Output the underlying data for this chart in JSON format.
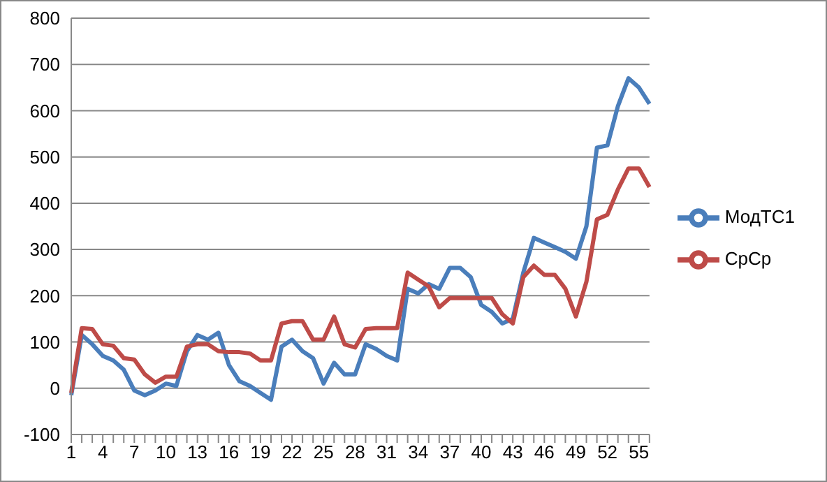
{
  "chart_data": {
    "type": "line",
    "categories": [
      "1",
      null,
      null,
      "4",
      null,
      null,
      "7",
      null,
      null,
      "10",
      null,
      null,
      "13",
      null,
      null,
      "16",
      null,
      null,
      "19",
      null,
      null,
      "22",
      null,
      null,
      "25",
      null,
      null,
      "28",
      null,
      null,
      "31",
      null,
      null,
      "34",
      null,
      null,
      "37",
      null,
      null,
      "40",
      null,
      null,
      "43",
      null,
      null,
      "46",
      null,
      null,
      "49",
      null,
      null,
      "52",
      null,
      null,
      "55",
      null
    ],
    "series": [
      {
        "name": "МодТС1",
        "color": "#4a7ebb",
        "values": [
          -15,
          115,
          95,
          70,
          60,
          40,
          -5,
          -15,
          -5,
          10,
          5,
          80,
          115,
          105,
          120,
          50,
          15,
          5,
          -10,
          -25,
          90,
          105,
          80,
          65,
          10,
          55,
          30,
          30,
          95,
          85,
          70,
          60,
          215,
          205,
          225,
          215,
          260,
          260,
          240,
          180,
          165,
          140,
          150,
          250,
          325,
          315,
          305,
          295,
          280,
          350,
          520,
          525,
          610,
          670,
          650,
          615
        ]
      },
      {
        "name": "СрСр",
        "color": "#be4b48",
        "values": [
          -10,
          130,
          128,
          95,
          92,
          65,
          62,
          30,
          12,
          25,
          25,
          90,
          95,
          95,
          80,
          78,
          78,
          75,
          60,
          60,
          140,
          145,
          145,
          105,
          105,
          155,
          95,
          88,
          128,
          130,
          130,
          130,
          250,
          235,
          220,
          175,
          195,
          195,
          195,
          195,
          195,
          160,
          140,
          240,
          265,
          245,
          245,
          215,
          155,
          230,
          365,
          375,
          430,
          475,
          475,
          435
        ]
      }
    ],
    "ylim": [
      -100,
      800
    ],
    "yticks": [
      -100,
      0,
      100,
      200,
      300,
      400,
      500,
      600,
      700,
      800
    ],
    "grid": "y",
    "legend": "right",
    "marker": "none",
    "line_style": "solid"
  }
}
